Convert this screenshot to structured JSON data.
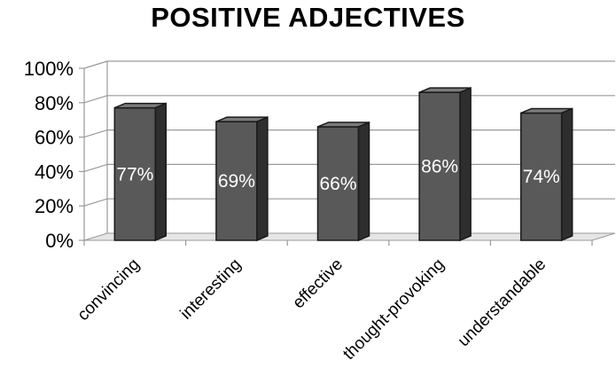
{
  "chart_data": {
    "type": "bar",
    "title": "POSITIVE ADJECTIVES",
    "categories": [
      "convincing",
      "interesting",
      "effective",
      "thought-provoking",
      "understandable"
    ],
    "values": [
      77,
      69,
      66,
      86,
      74
    ],
    "data_labels": [
      "77%",
      "69%",
      "66%",
      "86%",
      "74%"
    ],
    "ylim": [
      0,
      100
    ],
    "yticks": [
      0,
      20,
      40,
      60,
      80,
      100
    ],
    "ytick_labels": [
      "0%",
      "20%",
      "40%",
      "60%",
      "80%",
      "100%"
    ],
    "grid": true,
    "three_d": true,
    "bar_color": "#595959",
    "legend": "none"
  }
}
